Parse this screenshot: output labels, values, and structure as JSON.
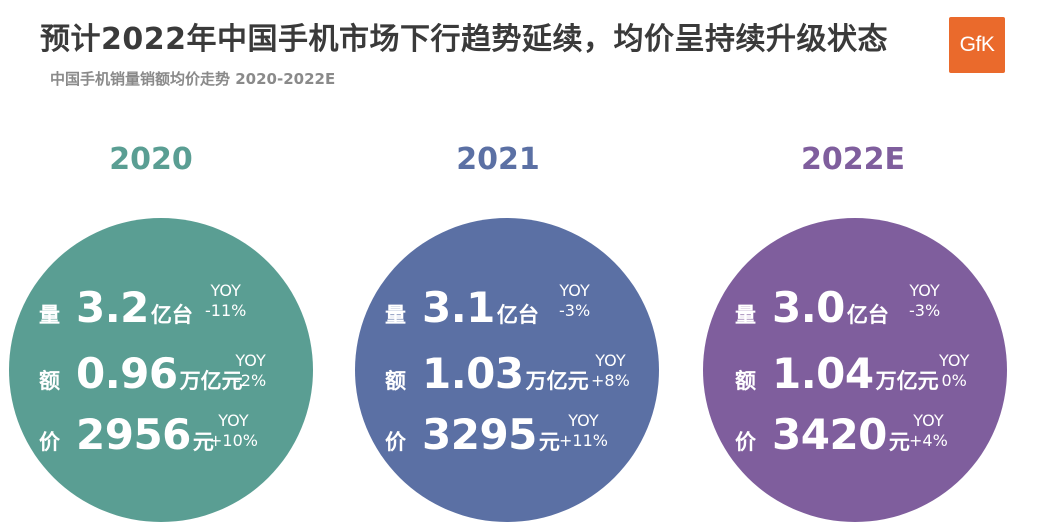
{
  "header": {
    "title": "预计2022年中国手机市场下行趋势延续，均价呈持续升级状态",
    "subtitle": "中国手机销量销额均价走势 2020-2022E",
    "logo_text": "GfK"
  },
  "colors": {
    "y2020": "#5a9e93",
    "y2021": "#5b70a4",
    "y2022": "#7f5e9d",
    "logo": "#ea6a2c"
  },
  "years": [
    {
      "year": "2020",
      "volume": {
        "label": "量",
        "value": "3.2",
        "unit": "亿台",
        "yoy_label": "YOY",
        "yoy": "-11%"
      },
      "revenue": {
        "label": "额",
        "value": "0.96",
        "unit": "万亿元",
        "yoy_label": "YOY",
        "yoy": "-2%"
      },
      "price": {
        "label": "价",
        "value": "2956",
        "unit": "元",
        "yoy_label": "YOY",
        "yoy": "+10%"
      }
    },
    {
      "year": "2021",
      "volume": {
        "label": "量",
        "value": "3.1",
        "unit": "亿台",
        "yoy_label": "YOY",
        "yoy": "-3%"
      },
      "revenue": {
        "label": "额",
        "value": "1.03",
        "unit": "万亿元",
        "yoy_label": "YOY",
        "yoy": "+8%"
      },
      "price": {
        "label": "价",
        "value": "3295",
        "unit": "元",
        "yoy_label": "YOY",
        "yoy": "+11%"
      }
    },
    {
      "year": "2022E",
      "volume": {
        "label": "量",
        "value": "3.0",
        "unit": "亿台",
        "yoy_label": "YOY",
        "yoy": "-3%"
      },
      "revenue": {
        "label": "额",
        "value": "1.04",
        "unit": "万亿元",
        "yoy_label": "YOY",
        "yoy": "0%"
      },
      "price": {
        "label": "价",
        "value": "3420",
        "unit": "元",
        "yoy_label": "YOY",
        "yoy": "+4%"
      }
    }
  ]
}
